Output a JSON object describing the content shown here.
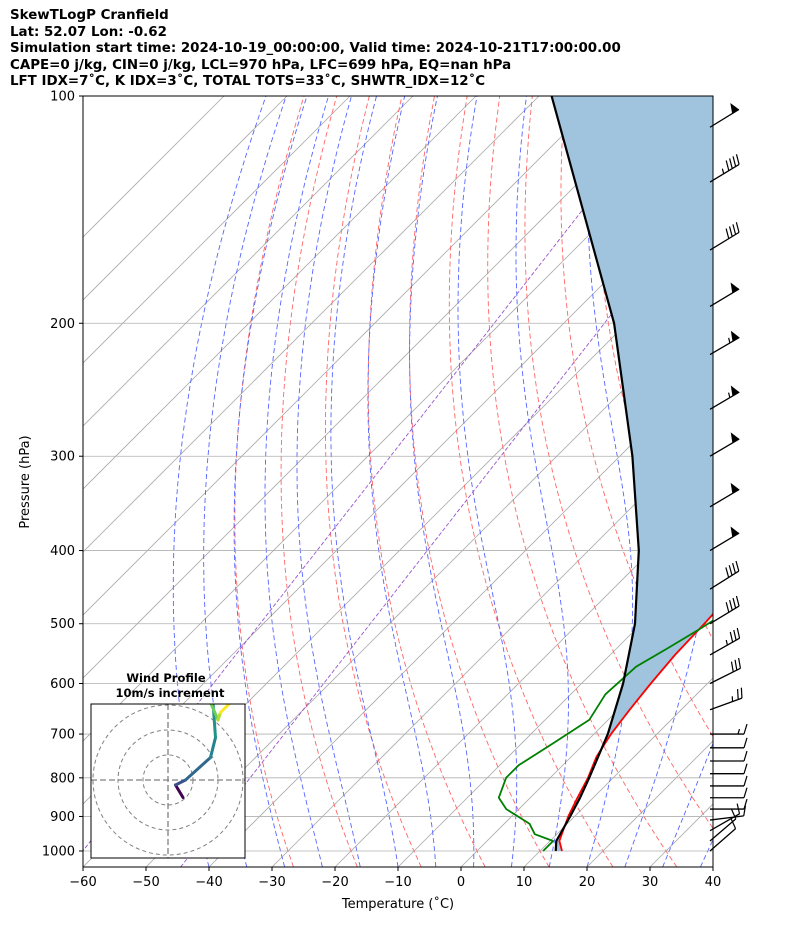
{
  "header": {
    "line1": "SkewTLogP Cranfield",
    "line2": "Lat: 52.07   Lon: -0.62",
    "line3": "Simulation start time: 2024-10-19_00:00:00, Valid time: 2024-10-21T17:00:00.00",
    "line4": "CAPE=0 j/kg, CIN=0 j/kg, LCL=970 hPa, LFC=699 hPa, EQ=nan hPa",
    "line5": "LFT IDX=7˚C, K IDX=3˚C, TOTAL TOTS=33˚C, SHWTR_IDX=12˚C"
  },
  "chart_data": [
    {
      "type": "skewt",
      "xlabel": "Temperature (˚C)",
      "ylabel": "Pressure (hPa)",
      "xlim": [
        -60,
        40
      ],
      "ylim": [
        1050,
        100
      ],
      "y_scale": "log",
      "x_ticks": [
        "−60",
        "−50",
        "−40",
        "−30",
        "−20",
        "−10",
        "0",
        "10",
        "20",
        "30",
        "40"
      ],
      "x_tick_values": [
        -60,
        -50,
        -40,
        -30,
        -20,
        -10,
        0,
        10,
        20,
        30,
        40
      ],
      "y_ticks": [
        "100",
        "200",
        "300",
        "400",
        "500",
        "600",
        "700",
        "800",
        "900",
        "1000"
      ],
      "y_tick_values": [
        100,
        200,
        300,
        400,
        500,
        600,
        700,
        800,
        900,
        1000
      ],
      "grid": true,
      "series": [
        {
          "color": "#ff0000",
          "points": [
            [
              1000,
              13.5
            ],
            [
              970,
              11.5
            ],
            [
              900,
              9
            ],
            [
              850,
              7.5
            ],
            [
              800,
              6
            ],
            [
              750,
              4
            ],
            [
              700,
              2.7
            ],
            [
              650,
              1.8
            ],
            [
              600,
              1
            ],
            [
              550,
              0.3
            ],
            [
              500,
              0
            ],
            [
              450,
              -0.5
            ],
            [
              400,
              -2
            ],
            [
              350,
              -3.5
            ],
            [
              320,
              -4.2
            ],
            [
              290,
              -4.3
            ],
            [
              260,
              -4.3
            ],
            [
              230,
              -4.6
            ],
            [
              205,
              -5
            ],
            [
              195,
              -3.5
            ],
            [
              180,
              -0.5
            ],
            [
              170,
              1.5
            ],
            [
              160,
              2
            ],
            [
              150,
              2
            ],
            [
              140,
              3
            ],
            [
              130,
              5
            ],
            [
              120,
              6
            ],
            [
              110,
              7.5
            ],
            [
              100,
              8.5
            ]
          ]
        },
        {
          "color": "#008000",
          "points": [
            [
              1000,
              10.5
            ],
            [
              970,
              10.5
            ],
            [
              950,
              6.5
            ],
            [
              920,
              4
            ],
            [
              880,
              -2
            ],
            [
              850,
              -5
            ],
            [
              800,
              -7
            ],
            [
              770,
              -7
            ],
            [
              720,
              -5
            ],
            [
              670,
              -3
            ],
            [
              620,
              -4.5
            ],
            [
              570,
              -4
            ],
            [
              540,
              -2
            ],
            [
              510,
              0
            ],
            [
              490,
              1.2
            ],
            [
              460,
              -0.5
            ],
            [
              420,
              -4
            ],
            [
              390,
              -8
            ],
            [
              360,
              -7.5
            ],
            [
              330,
              -8.5
            ],
            [
              310,
              -10
            ],
            [
              290,
              -9.5
            ],
            [
              270,
              -9
            ],
            [
              250,
              -9
            ],
            [
              230,
              -10.5
            ],
            [
              210,
              -12
            ],
            [
              190,
              -13
            ],
            [
              175,
              -13
            ],
            [
              160,
              -11
            ],
            [
              140,
              -8
            ],
            [
              120,
              -5
            ],
            [
              100,
              -1
            ]
          ]
        },
        {
          "color": "#000000",
          "points": [
            [
              1000,
              12.5
            ],
            [
              970,
              11
            ],
            [
              900,
              9.3
            ],
            [
              850,
              7.9
            ],
            [
              800,
              6.2
            ],
            [
              700,
              2.2
            ],
            [
              600,
              -3.4
            ],
            [
              500,
              -11
            ],
            [
              400,
              -22
            ],
            [
              300,
              -38
            ],
            [
              200,
              -62
            ],
            [
              100,
              -108
            ]
          ]
        }
      ],
      "cape_shading": {
        "color": "#a0c4de"
      },
      "guide_lines": {
        "isotherms": {
          "color": "#aaaaaa",
          "spacing_degC": 10
        },
        "dry_adiabats": {
          "color": "#ff6666",
          "style": "dashed"
        },
        "moist_adiabats": {
          "color": "#5566ff",
          "style": "dashed"
        },
        "mixing_ratio": {
          "color": "#9955cc",
          "style": "dashed"
        }
      },
      "wind_barbs": [
        {
          "p": 1000,
          "u": -8,
          "v": -7
        },
        {
          "p": 970,
          "u": -7,
          "v": -6
        },
        {
          "p": 940,
          "u": -7,
          "v": -4
        },
        {
          "p": 910,
          "u": -8,
          "v": -1
        },
        {
          "p": 880,
          "u": -9,
          "v": 0
        },
        {
          "p": 850,
          "u": -9,
          "v": 0
        },
        {
          "p": 820,
          "u": -10,
          "v": 0
        },
        {
          "p": 790,
          "u": -10,
          "v": 0
        },
        {
          "p": 760,
          "u": -11,
          "v": 0
        },
        {
          "p": 730,
          "u": -12,
          "v": 0
        },
        {
          "p": 700,
          "u": -14,
          "v": 0
        },
        {
          "p": 650,
          "u": -22,
          "v": -8
        },
        {
          "p": 600,
          "u": -28,
          "v": -14
        },
        {
          "p": 550,
          "u": -30,
          "v": -17
        },
        {
          "p": 500,
          "u": -33,
          "v": -20
        },
        {
          "p": 450,
          "u": -35,
          "v": -22
        },
        {
          "p": 400,
          "u": -40,
          "v": -24
        },
        {
          "p": 350,
          "u": -42,
          "v": -25
        },
        {
          "p": 300,
          "u": -44,
          "v": -26
        },
        {
          "p": 260,
          "u": -46,
          "v": -27
        },
        {
          "p": 220,
          "u": -48,
          "v": -28
        },
        {
          "p": 190,
          "u": -40,
          "v": -24
        },
        {
          "p": 160,
          "u": -36,
          "v": -22
        },
        {
          "p": 130,
          "u": -38,
          "v": -23
        },
        {
          "p": 110,
          "u": -39,
          "v": -24
        }
      ]
    },
    {
      "type": "hodograph",
      "title": "Wind Profile",
      "subtitle": "10m/s increment",
      "ring_increment_ms": 10,
      "rings": 3,
      "trace": [
        {
          "u": 6,
          "v": -7,
          "color": "#440154"
        },
        {
          "u": 3,
          "v": -2,
          "color": "#440154"
        },
        {
          "u": 7,
          "v": 0,
          "color": "#3b528b"
        },
        {
          "u": 17,
          "v": 9,
          "color": "#31688e"
        },
        {
          "u": 19,
          "v": 17,
          "color": "#26828e"
        },
        {
          "u": 18,
          "v": 31,
          "color": "#21918c"
        },
        {
          "u": 14,
          "v": 38,
          "color": "#35b779"
        },
        {
          "u": 20,
          "v": 24,
          "color": "#6ece58"
        },
        {
          "u": 21,
          "v": 27,
          "color": "#b5de2b"
        },
        {
          "u": 25,
          "v": 31,
          "color": "#fde725"
        }
      ]
    }
  ]
}
